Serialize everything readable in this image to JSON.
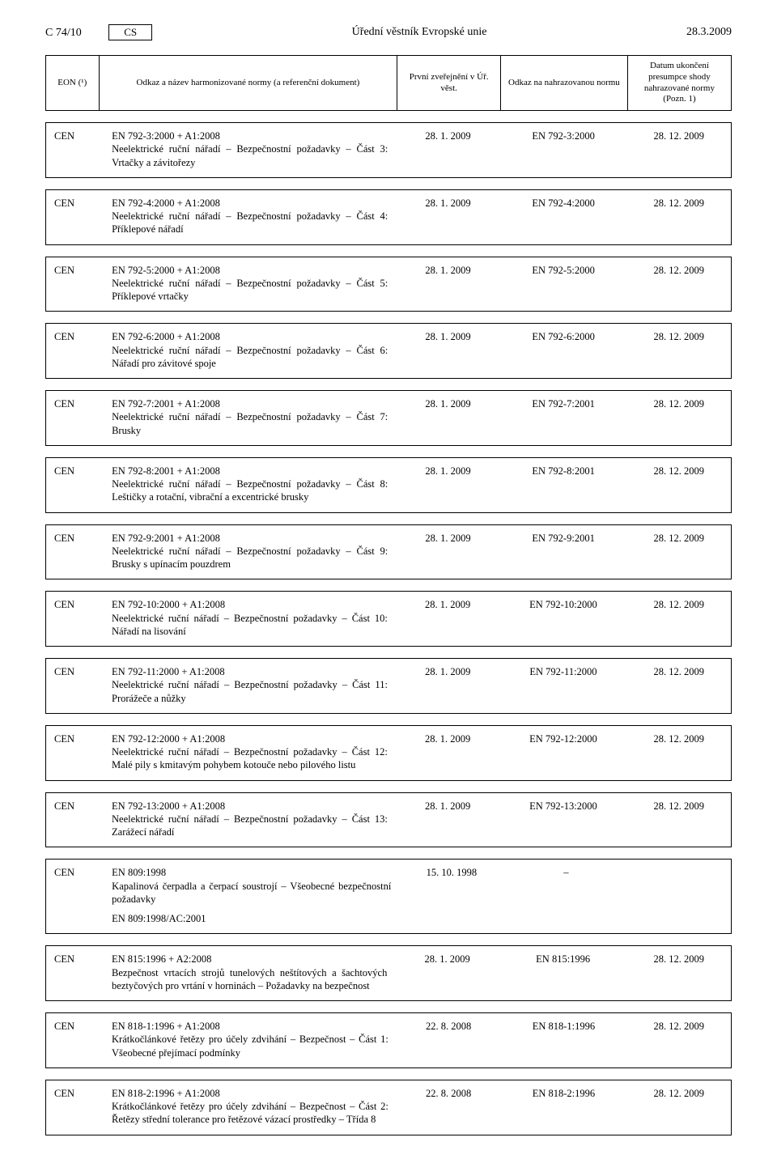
{
  "header": {
    "page_ref": "C 74/10",
    "lang": "CS",
    "journal_title": "Úřední věstník Evropské unie",
    "issue_date": "28.3.2009"
  },
  "columns": {
    "eon": "EON (¹)",
    "ref": "Odkaz a název harmonizované normy\n(a referenční dokument)",
    "pub": "První zveřejnění\nv Úř. věst.",
    "rep": "Odkaz na nahrazovanou\nnormu",
    "end": "Datum ukončení\npresumpce shody\nnahrazované\nnormy\n(Pozn. 1)"
  },
  "rows": [
    {
      "eon": "CEN",
      "code": "EN 792-3:2000 + A1:2008",
      "title": "Neelektrické ruční nářadí – Bezpečnostní požadavky – Část 3: Vrtačky a závitořezy",
      "pub": "28. 1. 2009",
      "rep": "EN 792-3:2000",
      "end": "28. 12. 2009"
    },
    {
      "eon": "CEN",
      "code": "EN 792-4:2000 + A1:2008",
      "title": "Neelektrické ruční nářadí – Bezpečnostní požadavky – Část 4: Příklepové nářadí",
      "pub": "28. 1. 2009",
      "rep": "EN 792-4:2000",
      "end": "28. 12. 2009"
    },
    {
      "eon": "CEN",
      "code": "EN 792-5:2000 + A1:2008",
      "title": "Neelektrické ruční nářadí – Bezpečnostní požadavky – Část 5: Příklepové vrtačky",
      "pub": "28. 1. 2009",
      "rep": "EN 792-5:2000",
      "end": "28. 12. 2009"
    },
    {
      "eon": "CEN",
      "code": "EN 792-6:2000 + A1:2008",
      "title": "Neelektrické ruční nářadí – Bezpečnostní požadavky – Část 6: Nářadí pro závitové spoje",
      "pub": "28. 1. 2009",
      "rep": "EN 792-6:2000",
      "end": "28. 12. 2009"
    },
    {
      "eon": "CEN",
      "code": "EN 792-7:2001 + A1:2008",
      "title": "Neelektrické ruční nářadí – Bezpečnostní požadavky – Část 7: Brusky",
      "pub": "28. 1. 2009",
      "rep": "EN 792-7:2001",
      "end": "28. 12. 2009"
    },
    {
      "eon": "CEN",
      "code": "EN 792-8:2001 + A1:2008",
      "title": "Neelektrické ruční nářadí – Bezpečnostní požadavky – Část 8: Leštičky a rotační, vibrační a excentrické brusky",
      "pub": "28. 1. 2009",
      "rep": "EN 792-8:2001",
      "end": "28. 12. 2009"
    },
    {
      "eon": "CEN",
      "code": "EN 792-9:2001 + A1:2008",
      "title": "Neelektrické ruční nářadí – Bezpečnostní požadavky – Část 9: Brusky s upínacím pouzdrem",
      "pub": "28. 1. 2009",
      "rep": "EN 792-9:2001",
      "end": "28. 12. 2009"
    },
    {
      "eon": "CEN",
      "code": "EN 792-10:2000 + A1:2008",
      "title": "Neelektrické ruční nářadí – Bezpečnostní požadavky – Část 10: Nářadí na lisování",
      "pub": "28. 1. 2009",
      "rep": "EN 792-10:2000",
      "end": "28. 12. 2009"
    },
    {
      "eon": "CEN",
      "code": "EN 792-11:2000 + A1:2008",
      "title": "Neelektrické ruční nářadí – Bezpečnostní požadavky – Část 11: Prorážeče a nůžky",
      "pub": "28. 1. 2009",
      "rep": "EN 792-11:2000",
      "end": "28. 12. 2009"
    },
    {
      "eon": "CEN",
      "code": "EN 792-12:2000 + A1:2008",
      "title": "Neelektrické ruční nářadí – Bezpečnostní požadavky – Část 12: Malé pily s kmitavým pohybem kotouče nebo pilového listu",
      "pub": "28. 1. 2009",
      "rep": "EN 792-12:2000",
      "end": "28. 12. 2009"
    },
    {
      "eon": "CEN",
      "code": "EN 792-13:2000 + A1:2008",
      "title": "Neelektrické ruční nářadí – Bezpečnostní požadavky – Část 13: Zarážecí nářadí",
      "pub": "28. 1. 2009",
      "rep": "EN 792-13:2000",
      "end": "28. 12. 2009"
    },
    {
      "eon": "CEN",
      "code": "EN 809:1998",
      "title": "Kapalinová čerpadla a čerpací soustrojí – Všeobecné bezpečnostní požadavky",
      "pub": "15. 10. 1998",
      "rep": "–",
      "end": "",
      "sub": "EN 809:1998/AC:2001"
    },
    {
      "eon": "CEN",
      "code": "EN 815:1996 + A2:2008",
      "title": "Bezpečnost vrtacích strojů tunelových neštítových a šachtových beztyčových pro vrtání v horninách – Požadavky na bezpečnost",
      "pub": "28. 1. 2009",
      "rep": "EN 815:1996",
      "end": "28. 12. 2009"
    },
    {
      "eon": "CEN",
      "code": "EN 818-1:1996 + A1:2008",
      "title": "Krátkočlánkové řetězy pro účely zdvihání – Bezpečnost – Část 1: Všeobecné přejímací podmínky",
      "pub": "22. 8. 2008",
      "rep": "EN 818-1:1996",
      "end": "28. 12. 2009"
    },
    {
      "eon": "CEN",
      "code": "EN 818-2:1996 + A1:2008",
      "title": "Krátkočlánkové řetězy pro účely zdvihání – Bezpečnost – Část 2: Řetězy střední tolerance pro řetězové vázací prostředky – Třída 8",
      "pub": "22. 8. 2008",
      "rep": "EN 818-2:1996",
      "end": "28. 12. 2009"
    }
  ]
}
